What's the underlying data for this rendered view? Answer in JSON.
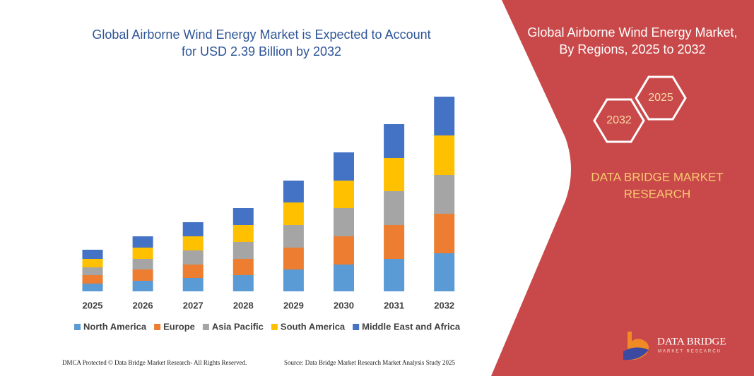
{
  "chart_data": {
    "type": "stacked-bar",
    "title_lines": [
      "Global Airborne Wind Energy Market is Expected to Account",
      "for USD 2.39 Billion by 2032"
    ],
    "categories": [
      "2025",
      "2026",
      "2027",
      "2028",
      "2029",
      "2030",
      "2031",
      "2032"
    ],
    "series": [
      {
        "name": "North America",
        "color": "#5b9bd5",
        "values": [
          11,
          15,
          19,
          23,
          31,
          38,
          46,
          54
        ]
      },
      {
        "name": "Europe",
        "color": "#ed7d31",
        "values": [
          12,
          16,
          19,
          23,
          31,
          40,
          48,
          56
        ]
      },
      {
        "name": "Asia Pacific",
        "color": "#a5a5a5",
        "values": [
          11,
          15,
          20,
          24,
          32,
          40,
          48,
          55
        ]
      },
      {
        "name": "South America",
        "color": "#ffc000",
        "values": [
          12,
          16,
          20,
          24,
          32,
          39,
          47,
          56
        ]
      },
      {
        "name": "Middle East and Africa",
        "color": "#4472c4",
        "values": [
          13,
          16,
          20,
          24,
          31,
          40,
          48,
          55
        ]
      }
    ]
  },
  "panel": {
    "title_lines": [
      "Global Airborne Wind Energy Market,",
      "By Regions, 2025 to 2032"
    ],
    "hexagons": [
      "2025",
      "2032"
    ],
    "brand_lines": [
      "DATA BRIDGE MARKET",
      "RESEARCH"
    ]
  },
  "logo": {
    "name": "DATA BRIDGE",
    "tagline": "MARKET RESEARCH"
  },
  "footer": {
    "left": "DMCA Protected © Data Bridge Market Research- All Rights Reserved.",
    "right": "Source: Data Bridge Market Research Market Analysis Study 2025"
  }
}
